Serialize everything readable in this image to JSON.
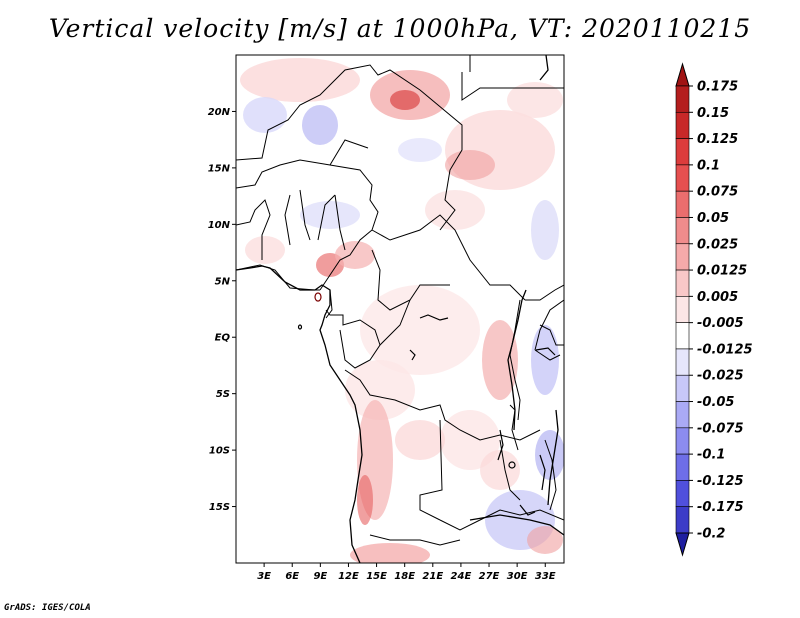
{
  "title": "Vertical velocity [m/s] at 1000hPa, VT: 2020110215",
  "credit": "GrADS: IGES/COLA",
  "map": {
    "lon_range": [
      0,
      35
    ],
    "lat_range": [
      -20,
      25
    ],
    "lat_ticks": [
      {
        "value": 20,
        "label": "20N"
      },
      {
        "value": 15,
        "label": "15N"
      },
      {
        "value": 10,
        "label": "10N"
      },
      {
        "value": 5,
        "label": "5N"
      },
      {
        "value": 0,
        "label": "EQ"
      },
      {
        "value": -5,
        "label": "5S"
      },
      {
        "value": -10,
        "label": "10S"
      },
      {
        "value": -15,
        "label": "15S"
      }
    ],
    "lon_ticks": [
      {
        "value": 3,
        "label": "3E"
      },
      {
        "value": 6,
        "label": "6E"
      },
      {
        "value": 9,
        "label": "9E"
      },
      {
        "value": 12,
        "label": "12E"
      },
      {
        "value": 15,
        "label": "15E"
      },
      {
        "value": 18,
        "label": "18E"
      },
      {
        "value": 21,
        "label": "21E"
      },
      {
        "value": 24,
        "label": "24E"
      },
      {
        "value": 27,
        "label": "27E"
      },
      {
        "value": 30,
        "label": "30E"
      },
      {
        "value": 33,
        "label": "33E"
      }
    ]
  },
  "colorbar": {
    "levels": [
      {
        "label": "0.175",
        "color": "#b41e1e"
      },
      {
        "label": "0.15",
        "color": "#c82828"
      },
      {
        "label": "0.125",
        "color": "#dc3c3c"
      },
      {
        "label": "0.1",
        "color": "#e65050"
      },
      {
        "label": "0.075",
        "color": "#eb6e6e"
      },
      {
        "label": "0.05",
        "color": "#f08c8c"
      },
      {
        "label": "0.025",
        "color": "#f5aaaa"
      },
      {
        "label": "0.0125",
        "color": "#f8c8c8"
      },
      {
        "label": "0.005",
        "color": "#fce6e6"
      },
      {
        "label": "-0.005",
        "color": "#ffffff"
      },
      {
        "label": "-0.0125",
        "color": "#e6e6fc"
      },
      {
        "label": "-0.025",
        "color": "#c8c8f8"
      },
      {
        "label": "-0.05",
        "color": "#aaaaf5"
      },
      {
        "label": "-0.075",
        "color": "#8c8cf0"
      },
      {
        "label": "-0.1",
        "color": "#6e6ee8"
      },
      {
        "label": "-0.125",
        "color": "#5050dc"
      },
      {
        "label": "-0.175",
        "color": "#3c3cc8"
      },
      {
        "label": "-0.2",
        "color": "#2828b4"
      }
    ],
    "top_color": "#a01414",
    "bottom_color": "#1e1ea0"
  }
}
